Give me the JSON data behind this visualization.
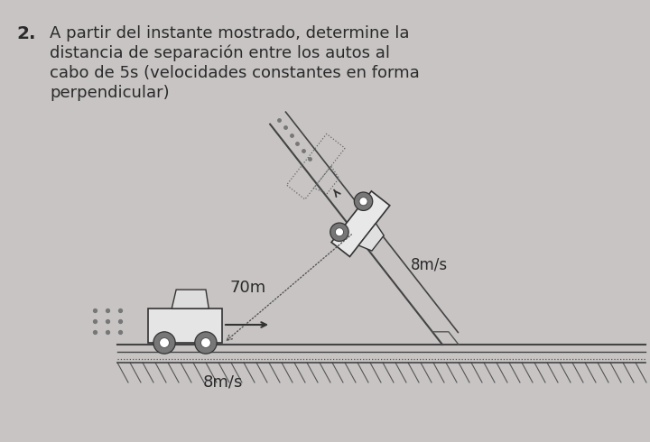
{
  "bg_color": "#c8c4c4",
  "text_color": "#2a2a2a",
  "title_lines": [
    "A partir del instante mostrado, determine la",
    "distancia de separación entre los autos al",
    "cabo de 5s (velocidades constantes en forma",
    "perpendicular)"
  ],
  "label_70m": "70m",
  "label_8ms_ramp": "8m/s",
  "label_8ms_road": "8m/s",
  "title_fontsize": 13.0,
  "number_fontsize": 14.5
}
